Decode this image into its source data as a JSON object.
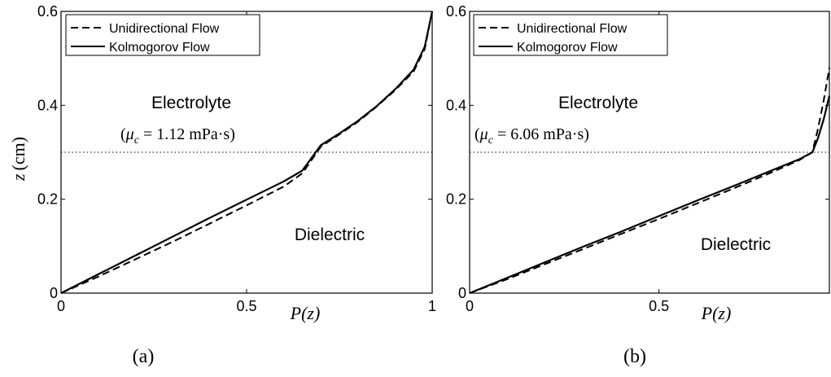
{
  "chart_data": [
    {
      "type": "line",
      "panel_label": "(a)",
      "xlabel": "P(z)",
      "ylabel_var": "z",
      "ylabel_unit": "(cm)",
      "xlim": [
        0,
        1
      ],
      "ylim": [
        0,
        0.6
      ],
      "xticks": [
        0,
        0.5,
        1
      ],
      "xtick_labels": [
        "0",
        "0.5",
        "1"
      ],
      "yticks": [
        0,
        0.2,
        0.4,
        0.6
      ],
      "ytick_labels": [
        "0",
        "0.2",
        "0.4",
        "0.6"
      ],
      "interface_z": 0.3,
      "legend": {
        "placement": "top-left",
        "entries": [
          "Unidirectional Flow",
          "Kolmogorov Flow"
        ]
      },
      "annotations": {
        "upper_region": "Electrolyte",
        "viscosity_open": "(",
        "viscosity_symbol": "μ",
        "viscosity_sub": "c",
        "viscosity_value": " = 1.12 mPa·s)",
        "lower_region": "Dielectric"
      },
      "series": [
        {
          "name": "Unidirectional Flow",
          "style": "dashed",
          "x": [
            0,
            0.1,
            0.2,
            0.3,
            0.4,
            0.5,
            0.6,
            0.65,
            0.7,
            0.75,
            0.8,
            0.85,
            0.9,
            0.95,
            0.98,
            1.0
          ],
          "y": [
            0,
            0.035,
            0.072,
            0.109,
            0.148,
            0.187,
            0.227,
            0.255,
            0.312,
            0.338,
            0.365,
            0.397,
            0.432,
            0.472,
            0.52,
            0.6
          ]
        },
        {
          "name": "Kolmogorov Flow",
          "style": "solid",
          "x": [
            0,
            0.1,
            0.2,
            0.3,
            0.4,
            0.5,
            0.6,
            0.65,
            0.7,
            0.75,
            0.8,
            0.85,
            0.9,
            0.95,
            0.98,
            1.0
          ],
          "y": [
            0,
            0.04,
            0.08,
            0.12,
            0.16,
            0.199,
            0.238,
            0.261,
            0.315,
            0.34,
            0.367,
            0.398,
            0.434,
            0.476,
            0.525,
            0.6
          ]
        }
      ]
    },
    {
      "type": "line",
      "panel_label": "(b)",
      "xlabel": "P(z)",
      "ylabel_var": "",
      "ylabel_unit": "",
      "xlim": [
        0,
        0.95
      ],
      "ylim": [
        0,
        0.6
      ],
      "xticks": [
        0,
        0.5
      ],
      "xtick_labels": [
        "0",
        "0.5"
      ],
      "yticks": [
        0,
        0.2,
        0.4,
        0.6
      ],
      "ytick_labels": [
        "0",
        "0.2",
        "0.4",
        "0.6"
      ],
      "interface_z": 0.3,
      "legend": {
        "placement": "top-left",
        "entries": [
          "Unidirectional Flow",
          "Kolmogorov Flow"
        ]
      },
      "annotations": {
        "upper_region": "Electrolyte",
        "viscosity_open": "(",
        "viscosity_symbol": "μ",
        "viscosity_sub": "c",
        "viscosity_value": " = 6.06 mPa·s)",
        "lower_region": "Dielectric"
      },
      "series": [
        {
          "name": "Unidirectional Flow",
          "style": "dashed",
          "x": [
            0,
            0.1,
            0.2,
            0.3,
            0.4,
            0.5,
            0.6,
            0.7,
            0.8,
            0.87,
            0.905,
            0.92,
            0.935,
            0.95
          ],
          "y": [
            0,
            0.03,
            0.062,
            0.094,
            0.126,
            0.158,
            0.191,
            0.224,
            0.258,
            0.283,
            0.3,
            0.35,
            0.41,
            0.48
          ]
        },
        {
          "name": "Kolmogorov Flow",
          "style": "solid",
          "x": [
            0,
            0.1,
            0.2,
            0.3,
            0.4,
            0.5,
            0.6,
            0.7,
            0.8,
            0.87,
            0.905,
            0.92,
            0.935,
            0.95
          ],
          "y": [
            0,
            0.033,
            0.066,
            0.099,
            0.131,
            0.164,
            0.197,
            0.229,
            0.262,
            0.285,
            0.3,
            0.33,
            0.37,
            0.42
          ]
        }
      ]
    }
  ]
}
